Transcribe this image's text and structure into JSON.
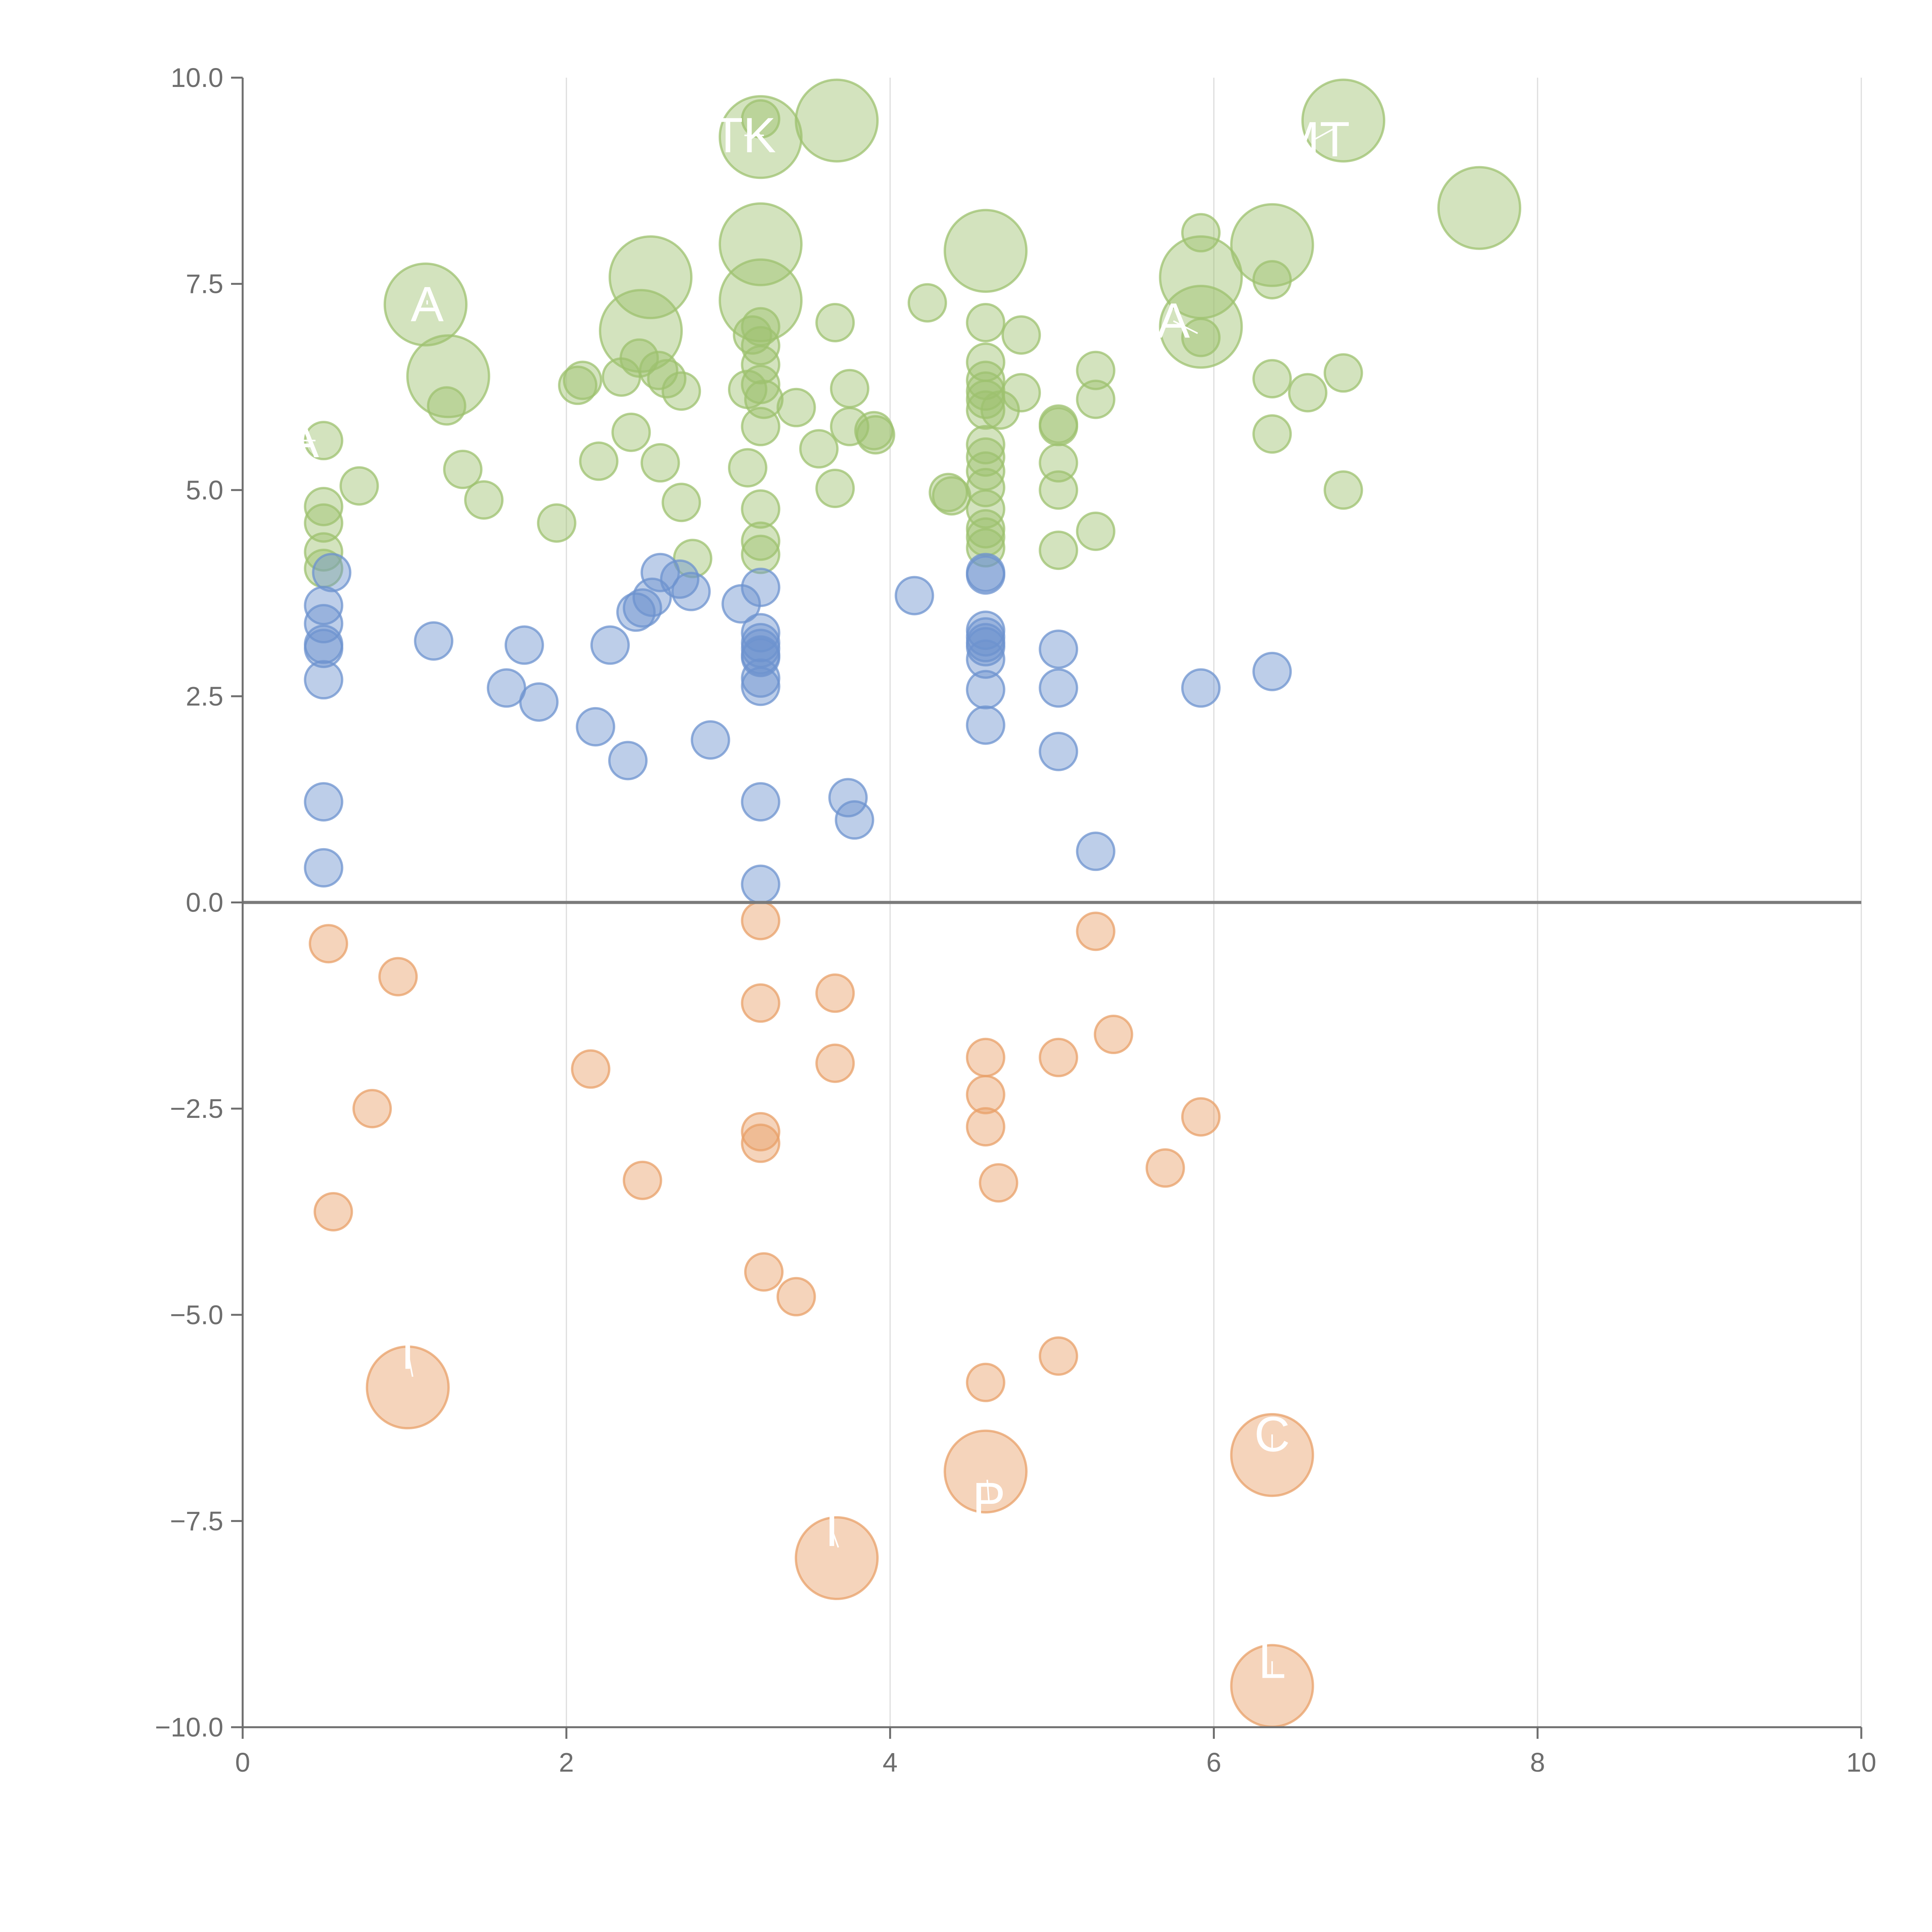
{
  "chart_data": {
    "type": "scatter",
    "title": "",
    "xlabel": "",
    "ylabel": "",
    "xlim": [
      0,
      10
    ],
    "ylim": [
      -10,
      10
    ],
    "xticks": [
      "0",
      "2",
      "4",
      "6",
      "8",
      "10"
    ],
    "yticks": [
      "10.0",
      "7.5",
      "5.0",
      "2.5",
      "0.0",
      "−2.5",
      "−5.0",
      "−7.5",
      "−10.0"
    ],
    "grid": "vertical",
    "zero_line": true,
    "colors": {
      "green": "#9dc16f",
      "blue": "#6d93cf",
      "orange": "#e8a068",
      "axis": "#6e6e6e",
      "grid": "#dddddd",
      "zero": "#7a7a7a",
      "label": "#ffffff"
    },
    "series": [
      {
        "name": "green",
        "color": "#9dc16f",
        "points": [
          [
            0.5,
            5.6,
            1
          ],
          [
            0.5,
            4.8,
            1
          ],
          [
            0.5,
            4.6,
            1
          ],
          [
            0.5,
            4.25,
            1
          ],
          [
            0.5,
            4.05,
            1
          ],
          [
            0.72,
            5.05,
            1
          ],
          [
            1.13,
            7.25,
            2.2
          ],
          [
            1.27,
            6.38,
            2.2
          ],
          [
            1.26,
            6.02,
            1
          ],
          [
            1.36,
            5.25,
            1
          ],
          [
            1.49,
            4.88,
            1
          ],
          [
            1.94,
            4.6,
            1
          ],
          [
            2.07,
            6.27,
            1
          ],
          [
            2.1,
            6.33,
            1
          ],
          [
            2.2,
            5.35,
            1
          ],
          [
            2.34,
            6.37,
            1
          ],
          [
            2.45,
            6.6,
            1
          ],
          [
            2.4,
            5.7,
            1
          ],
          [
            2.52,
            7.58,
            2.2
          ],
          [
            2.46,
            6.93,
            2.2
          ],
          [
            2.57,
            6.45,
            1
          ],
          [
            2.62,
            6.35,
            1
          ],
          [
            2.58,
            5.33,
            1
          ],
          [
            2.71,
            6.2,
            1
          ],
          [
            2.71,
            4.85,
            1
          ],
          [
            2.78,
            4.17,
            1
          ],
          [
            3.2,
            9.5,
            1
          ],
          [
            3.2,
            9.28,
            2.2
          ],
          [
            3.2,
            7.98,
            2.2
          ],
          [
            3.2,
            7.3,
            2.2
          ],
          [
            3.2,
            6.98,
            1
          ],
          [
            3.15,
            6.88,
            1
          ],
          [
            3.2,
            6.75,
            1
          ],
          [
            3.2,
            6.52,
            1
          ],
          [
            3.2,
            6.28,
            1
          ],
          [
            3.12,
            6.22,
            1
          ],
          [
            3.22,
            6.1,
            1
          ],
          [
            3.2,
            5.77,
            1
          ],
          [
            3.12,
            5.27,
            1
          ],
          [
            3.2,
            4.77,
            1
          ],
          [
            3.2,
            4.38,
            1
          ],
          [
            3.2,
            4.22,
            1
          ],
          [
            3.42,
            6.0,
            1
          ],
          [
            3.56,
            5.5,
            1
          ],
          [
            3.66,
            7.03,
            1
          ],
          [
            3.66,
            5.02,
            1
          ],
          [
            3.67,
            9.48,
            2.2
          ],
          [
            3.75,
            6.23,
            1
          ],
          [
            3.75,
            5.77,
            1
          ],
          [
            3.9,
            5.72,
            1
          ],
          [
            3.91,
            5.67,
            1
          ],
          [
            4.23,
            7.27,
            1
          ],
          [
            4.36,
            4.97,
            1
          ],
          [
            4.38,
            4.93,
            1
          ],
          [
            4.59,
            7.9,
            2.2
          ],
          [
            4.59,
            7.03,
            1
          ],
          [
            4.59,
            6.55,
            1
          ],
          [
            4.59,
            6.33,
            1
          ],
          [
            4.59,
            6.2,
            1
          ],
          [
            4.59,
            6.1,
            1
          ],
          [
            4.59,
            5.97,
            1
          ],
          [
            4.68,
            5.97,
            1
          ],
          [
            4.59,
            5.55,
            1
          ],
          [
            4.59,
            5.4,
            1
          ],
          [
            4.59,
            5.23,
            1
          ],
          [
            4.59,
            5.03,
            1
          ],
          [
            4.59,
            4.77,
            1
          ],
          [
            4.59,
            4.53,
            1
          ],
          [
            4.59,
            4.43,
            1
          ],
          [
            4.59,
            4.3,
            1
          ],
          [
            4.81,
            6.88,
            1
          ],
          [
            4.81,
            6.18,
            1
          ],
          [
            5.04,
            5.8,
            1
          ],
          [
            5.04,
            5.77,
            1
          ],
          [
            5.04,
            5.33,
            1
          ],
          [
            5.04,
            5.0,
            1
          ],
          [
            5.04,
            4.27,
            1
          ],
          [
            5.27,
            6.45,
            1
          ],
          [
            5.27,
            6.1,
            1
          ],
          [
            5.27,
            4.5,
            1
          ],
          [
            5.92,
            8.12,
            1
          ],
          [
            5.92,
            7.58,
            2.2
          ],
          [
            5.92,
            6.98,
            2.2
          ],
          [
            5.92,
            6.85,
            1
          ],
          [
            6.36,
            7.97,
            2.2
          ],
          [
            6.36,
            7.55,
            1
          ],
          [
            6.36,
            6.35,
            1
          ],
          [
            6.36,
            5.68,
            1
          ],
          [
            6.58,
            6.18,
            1
          ],
          [
            6.8,
            9.48,
            2.2
          ],
          [
            6.8,
            6.42,
            1
          ],
          [
            6.8,
            5.0,
            1
          ],
          [
            7.64,
            8.42,
            2.2
          ]
        ]
      },
      {
        "name": "blue",
        "color": "#6d93cf",
        "points": [
          [
            0.55,
            4.0,
            1
          ],
          [
            0.5,
            3.6,
            1
          ],
          [
            0.5,
            3.38,
            1
          ],
          [
            0.5,
            3.13,
            1
          ],
          [
            0.5,
            3.08,
            1
          ],
          [
            0.5,
            2.7,
            1
          ],
          [
            0.5,
            1.22,
            1
          ],
          [
            0.5,
            0.42,
            1
          ],
          [
            1.18,
            3.17,
            1
          ],
          [
            1.63,
            2.6,
            1
          ],
          [
            1.74,
            3.12,
            1
          ],
          [
            1.83,
            2.43,
            1
          ],
          [
            2.18,
            2.13,
            1
          ],
          [
            2.27,
            3.12,
            1
          ],
          [
            2.38,
            1.72,
            1
          ],
          [
            2.43,
            3.52,
            1
          ],
          [
            2.47,
            3.57,
            1
          ],
          [
            2.53,
            3.7,
            1
          ],
          [
            2.58,
            4.0,
            1
          ],
          [
            2.7,
            3.92,
            1
          ],
          [
            2.77,
            3.77,
            1
          ],
          [
            2.89,
            1.97,
            1
          ],
          [
            3.08,
            3.62,
            1
          ],
          [
            3.2,
            3.82,
            1
          ],
          [
            3.2,
            3.27,
            1
          ],
          [
            3.2,
            3.15,
            1
          ],
          [
            3.2,
            3.08,
            1
          ],
          [
            3.2,
            3.0,
            1
          ],
          [
            3.2,
            2.97,
            1
          ],
          [
            3.2,
            2.72,
            1
          ],
          [
            3.2,
            2.62,
            1
          ],
          [
            3.2,
            1.22,
            1
          ],
          [
            3.2,
            0.22,
            1
          ],
          [
            3.74,
            1.27,
            1
          ],
          [
            3.78,
            1.0,
            1
          ],
          [
            4.15,
            3.72,
            1
          ],
          [
            4.59,
            4.0,
            1
          ],
          [
            4.59,
            3.97,
            1
          ],
          [
            4.59,
            3.3,
            1
          ],
          [
            4.59,
            3.22,
            1
          ],
          [
            4.59,
            3.15,
            1
          ],
          [
            4.59,
            3.1,
            1
          ],
          [
            4.59,
            2.95,
            1
          ],
          [
            4.59,
            2.58,
            1
          ],
          [
            4.59,
            2.15,
            1
          ],
          [
            5.04,
            3.07,
            1
          ],
          [
            5.04,
            2.6,
            1
          ],
          [
            5.04,
            1.83,
            1
          ],
          [
            5.27,
            0.62,
            1
          ],
          [
            5.92,
            2.6,
            1
          ],
          [
            6.36,
            2.8,
            1
          ]
        ]
      },
      {
        "name": "orange",
        "color": "#e8a068",
        "points": [
          [
            0.53,
            -0.5,
            1
          ],
          [
            0.96,
            -0.9,
            1
          ],
          [
            0.8,
            -2.5,
            1
          ],
          [
            0.56,
            -3.75,
            1
          ],
          [
            1.02,
            -5.88,
            2.2
          ],
          [
            2.15,
            -2.02,
            1
          ],
          [
            2.47,
            -3.37,
            1
          ],
          [
            3.2,
            -0.22,
            1
          ],
          [
            3.2,
            -1.22,
            1
          ],
          [
            3.2,
            -2.78,
            1
          ],
          [
            3.2,
            -2.92,
            1
          ],
          [
            3.22,
            -4.48,
            1
          ],
          [
            3.42,
            -4.78,
            1
          ],
          [
            3.66,
            -1.1,
            1
          ],
          [
            3.66,
            -1.95,
            1
          ],
          [
            3.67,
            -7.95,
            2.2
          ],
          [
            4.59,
            -1.88,
            1
          ],
          [
            4.59,
            -2.33,
            1
          ],
          [
            4.59,
            -2.72,
            1
          ],
          [
            4.67,
            -3.4,
            1
          ],
          [
            4.59,
            -5.82,
            1
          ],
          [
            4.59,
            -6.9,
            2.2
          ],
          [
            5.04,
            -1.88,
            1
          ],
          [
            5.04,
            -5.5,
            1
          ],
          [
            5.27,
            -0.35,
            1
          ],
          [
            5.38,
            -1.6,
            1
          ],
          [
            5.7,
            -3.22,
            1
          ],
          [
            5.92,
            -2.6,
            1
          ],
          [
            6.36,
            -6.7,
            2.2
          ],
          [
            6.36,
            -9.5,
            2.2
          ]
        ]
      }
    ],
    "annotations": [
      {
        "text": "TK",
        "x": 3.1,
        "y": 9.3,
        "lx": 3.22,
        "ly": 9.3
      },
      {
        "text": "MT",
        "x": 6.62,
        "y": 9.25,
        "lx": 6.74,
        "ly": 9.38
      },
      {
        "text": "A",
        "x": 1.14,
        "y": 7.25,
        "lx": 1.14,
        "ly": 7.3
      },
      {
        "text": "A",
        "x": 5.75,
        "y": 7.05,
        "lx": 5.9,
        "ly": 6.9
      },
      {
        "text": "A",
        "x": 0.37,
        "y": 5.6,
        "lx": 0.45,
        "ly": 5.6
      },
      {
        "text": "T",
        "x": 1.02,
        "y": -5.45,
        "lx": 1.05,
        "ly": -5.75
      },
      {
        "text": "T",
        "x": 3.64,
        "y": -7.6,
        "lx": 3.68,
        "ly": -7.82
      },
      {
        "text": "P",
        "x": 4.61,
        "y": -7.25,
        "lx": 4.6,
        "ly": -7.0
      },
      {
        "text": "C",
        "x": 6.36,
        "y": -6.45,
        "lx": 6.36,
        "ly": -6.62
      },
      {
        "text": "L",
        "x": 6.36,
        "y": -9.2,
        "lx": 6.36,
        "ly": -9.4
      }
    ]
  }
}
